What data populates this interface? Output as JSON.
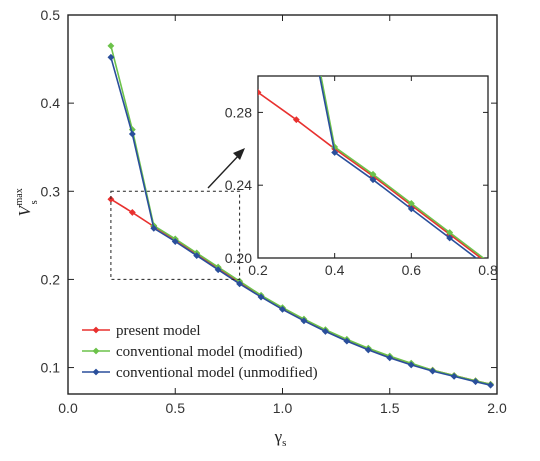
{
  "chart_data": {
    "type": "line",
    "xlabel": "γ",
    "xlabel_sub": "s",
    "ylabel": "V",
    "ylabel_sub": "s",
    "ylabel_sup": "max",
    "xlim": [
      0,
      2.0
    ],
    "ylim": [
      0.07,
      0.5
    ],
    "xticks": [
      "0.0",
      "0.5",
      "1.0",
      "1.5",
      "2.0"
    ],
    "yticks": [
      "0.1",
      "0.2",
      "0.3",
      "0.4",
      "0.5"
    ],
    "legend_position": "bottom-left",
    "series": [
      {
        "name": "present model",
        "color": "#e8312f",
        "x": [
          0.2,
          0.3,
          0.4,
          0.5,
          0.6,
          0.7,
          0.8,
          0.9,
          1.0,
          1.1,
          1.2,
          1.3,
          1.4,
          1.5,
          1.6,
          1.7,
          1.8,
          1.9,
          1.97
        ],
        "y": [
          0.291,
          0.276,
          0.26,
          0.245,
          0.229,
          0.213,
          0.197,
          0.181,
          0.167,
          0.154,
          0.142,
          0.131,
          0.121,
          0.112,
          0.104,
          0.097,
          0.091,
          0.085,
          0.081
        ]
      },
      {
        "name": "conventional model (modified)",
        "color": "#6cc24a",
        "x": [
          0.2,
          0.3,
          0.4,
          0.5,
          0.6,
          0.7,
          0.8,
          0.9,
          1.0,
          1.1,
          1.2,
          1.3,
          1.4,
          1.5,
          1.6,
          1.7,
          1.8,
          1.9,
          1.97
        ],
        "y": [
          0.465,
          0.37,
          0.261,
          0.246,
          0.23,
          0.214,
          0.198,
          0.182,
          0.168,
          0.155,
          0.143,
          0.132,
          0.122,
          0.113,
          0.105,
          0.097,
          0.091,
          0.085,
          0.081
        ]
      },
      {
        "name": "conventional model (unmodified)",
        "color": "#2a4f9b",
        "x": [
          0.2,
          0.3,
          0.4,
          0.5,
          0.6,
          0.7,
          0.8,
          0.9,
          1.0,
          1.1,
          1.2,
          1.3,
          1.4,
          1.5,
          1.6,
          1.7,
          1.8,
          1.9,
          1.97
        ],
        "y": [
          0.452,
          0.365,
          0.258,
          0.243,
          0.227,
          0.211,
          0.195,
          0.18,
          0.166,
          0.153,
          0.141,
          0.13,
          0.12,
          0.111,
          0.103,
          0.096,
          0.09,
          0.084,
          0.08
        ]
      }
    ],
    "inset": {
      "xlim": [
        0.2,
        0.8
      ],
      "ylim": [
        0.2,
        0.3
      ],
      "xticks": [
        "0.2",
        "0.4",
        "0.6",
        "0.8"
      ],
      "yticks": [
        "0.20",
        "0.24",
        "0.28"
      ]
    }
  }
}
